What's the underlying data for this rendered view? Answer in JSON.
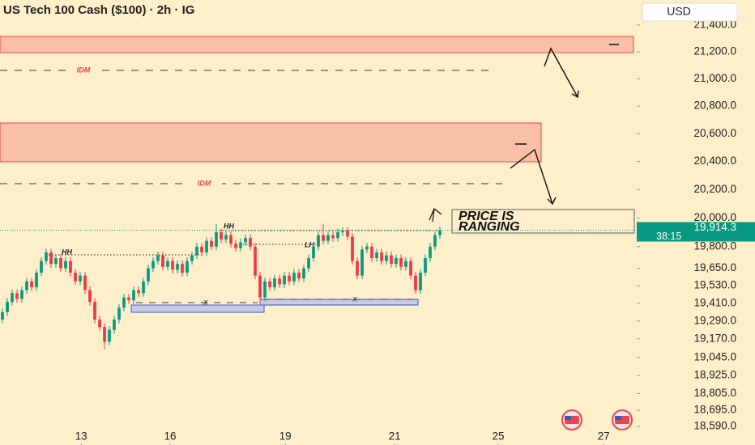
{
  "chart_data": {
    "type": "candlestick",
    "title": "US Tech 100 Cash ($100) · 2h · IG",
    "currency": "USD",
    "log": true,
    "grid": false,
    "up_color": "#089981",
    "down_color": "#f23645",
    "ylim": [
      18469,
      21589
    ],
    "yticks": [
      {
        "value": 21400,
        "label": "21,400.0"
      },
      {
        "value": 21200,
        "label": "21,200.0"
      },
      {
        "value": 21000,
        "label": "21,000.0"
      },
      {
        "value": 20800,
        "label": "20,800.0"
      },
      {
        "value": 20600,
        "label": "20,600.0"
      },
      {
        "value": 20400,
        "label": "20,400.0"
      },
      {
        "value": 20200,
        "label": "20,200.0"
      },
      {
        "value": 20000,
        "label": "20,000.0"
      },
      {
        "value": 19800,
        "label": "19,800.0"
      },
      {
        "value": 19650,
        "label": "19,650.0"
      },
      {
        "value": 19530,
        "label": "19,530.0"
      },
      {
        "value": 19410,
        "label": "19,410.0"
      },
      {
        "value": 19290,
        "label": "19,290.0"
      },
      {
        "value": 19170,
        "label": "19,170.0"
      },
      {
        "value": 19045,
        "label": "19,045.0"
      },
      {
        "value": 18925,
        "label": "18,925.0"
      },
      {
        "value": 18805,
        "label": "18,805.0"
      },
      {
        "value": 18695,
        "label": "18,695.0"
      },
      {
        "value": 18590,
        "label": "18,590.0"
      }
    ],
    "xlim": [
      -0.5,
      130.5
    ],
    "xticks": [
      {
        "value": 16.2,
        "label": "13"
      },
      {
        "value": 34.5,
        "label": "16"
      },
      {
        "value": 58.2,
        "label": "19"
      },
      {
        "value": 80.7,
        "label": "21"
      },
      {
        "value": 102,
        "label": "25"
      },
      {
        "value": 123.7,
        "label": "27"
      }
    ],
    "open": [
      19300,
      19350,
      19420,
      19480,
      19440,
      19500,
      19560,
      19520,
      19620,
      19700,
      19760,
      19680,
      19720,
      19650,
      19700,
      19620,
      19560,
      19600,
      19500,
      19420,
      19300,
      19250,
      19150,
      19230,
      19300,
      19380,
      19450,
      19430,
      19500,
      19480,
      19560,
      19650,
      19700,
      19740,
      19660,
      19700,
      19640,
      19680,
      19620,
      19700,
      19740,
      19800,
      19760,
      19840,
      19800,
      19900,
      19850,
      19880,
      19820,
      19790,
      19830,
      19860,
      19800,
      19600,
      19450,
      19560,
      19520,
      19580,
      19540,
      19600,
      19560,
      19620,
      19580,
      19650,
      19720,
      19800,
      19880,
      19840,
      19880,
      19860,
      19900,
      19910,
      19870,
      19700,
      19600,
      19780,
      19800,
      19720,
      19760,
      19700,
      19740,
      19680,
      19720,
      19660,
      19700,
      19600,
      19500,
      19620,
      19720,
      19800,
      19880
    ],
    "high": [
      19375,
      19445,
      19505,
      19505,
      19525,
      19585,
      19585,
      19645,
      19725,
      19785,
      19785,
      19745,
      19745,
      19725,
      19725,
      19645,
      19625,
      19625,
      19525,
      19445,
      19325,
      19275,
      19255,
      19325,
      19405,
      19475,
      19475,
      19525,
      19525,
      19585,
      19675,
      19725,
      19765,
      19765,
      19725,
      19725,
      19705,
      19705,
      19725,
      19765,
      19825,
      19825,
      19865,
      19865,
      19960,
      19925,
      19905,
      19905,
      19845,
      19855,
      19885,
      19885,
      19825,
      19625,
      19585,
      19585,
      19605,
      19605,
      19625,
      19625,
      19645,
      19645,
      19675,
      19745,
      19825,
      19905,
      19960,
      19905,
      19905,
      19925,
      19935,
      19935,
      19895,
      19725,
      19805,
      19825,
      19825,
      19785,
      19785,
      19765,
      19765,
      19745,
      19745,
      19725,
      19725,
      19625,
      19645,
      19745,
      19825,
      19905,
      19939
    ],
    "low": [
      19275,
      19325,
      19395,
      19415,
      19415,
      19475,
      19495,
      19495,
      19595,
      19675,
      19655,
      19655,
      19625,
      19625,
      19595,
      19535,
      19535,
      19475,
      19395,
      19275,
      19225,
      19100,
      19125,
      19205,
      19275,
      19355,
      19405,
      19405,
      19455,
      19455,
      19535,
      19625,
      19675,
      19635,
      19635,
      19615,
      19615,
      19595,
      19595,
      19675,
      19715,
      19735,
      19735,
      19775,
      19775,
      19825,
      19825,
      19795,
      19765,
      19765,
      19805,
      19775,
      19575,
      19400,
      19425,
      19495,
      19495,
      19515,
      19515,
      19535,
      19535,
      19555,
      19555,
      19625,
      19695,
      19775,
      19815,
      19815,
      19835,
      19835,
      19875,
      19845,
      19675,
      19575,
      19575,
      19755,
      19695,
      19695,
      19675,
      19675,
      19655,
      19655,
      19635,
      19635,
      19575,
      19475,
      19475,
      19595,
      19695,
      19775,
      19855
    ],
    "close": [
      19350,
      19420,
      19480,
      19440,
      19500,
      19560,
      19520,
      19620,
      19700,
      19760,
      19680,
      19720,
      19650,
      19700,
      19620,
      19560,
      19600,
      19500,
      19420,
      19300,
      19250,
      19150,
      19230,
      19300,
      19380,
      19450,
      19430,
      19500,
      19480,
      19560,
      19650,
      19700,
      19740,
      19660,
      19700,
      19640,
      19680,
      19620,
      19700,
      19740,
      19800,
      19760,
      19840,
      19800,
      19900,
      19850,
      19880,
      19820,
      19790,
      19830,
      19860,
      19800,
      19600,
      19450,
      19560,
      19520,
      19580,
      19540,
      19600,
      19560,
      19620,
      19580,
      19650,
      19720,
      19800,
      19880,
      19840,
      19880,
      19860,
      19900,
      19910,
      19870,
      19700,
      19600,
      19780,
      19800,
      19720,
      19760,
      19700,
      19740,
      19680,
      19720,
      19660,
      19700,
      19600,
      19500,
      19620,
      19720,
      19800,
      19880,
      19914.3
    ],
    "last_price_label": "19,914.3",
    "countdown": "38:15",
    "annotations": {
      "idm_upper": "IDM",
      "idm_lower": "IDM",
      "hh_left": "HH",
      "hh_right": "HH",
      "lh": "LH",
      "x_left": "x",
      "x_right": "x",
      "note_line1": "PRICE IS",
      "note_line2": "RANGING"
    }
  }
}
